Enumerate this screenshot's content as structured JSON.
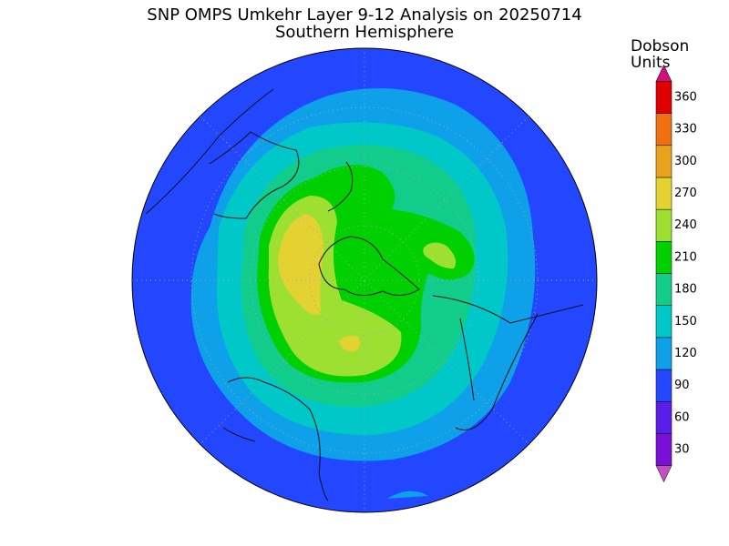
{
  "header": {
    "title": "SNP OMPS Umkehr Layer 9-12 Analysis on 20250714",
    "subtitle": "Southern Hemisphere"
  },
  "colorbar": {
    "label": [
      "Dobson",
      "Units"
    ],
    "ticks": [
      30,
      60,
      90,
      120,
      150,
      180,
      210,
      240,
      270,
      300,
      330,
      360
    ],
    "colors": [
      "#7a10d8",
      "#5a1ee8",
      "#2346ff",
      "#0ea0e8",
      "#00c8c8",
      "#12cc8c",
      "#00d000",
      "#9ee032",
      "#e4d232",
      "#e8a21e",
      "#f07010",
      "#e00000"
    ],
    "under_color": "#c050c0",
    "over_color": "#d0107a"
  }
}
